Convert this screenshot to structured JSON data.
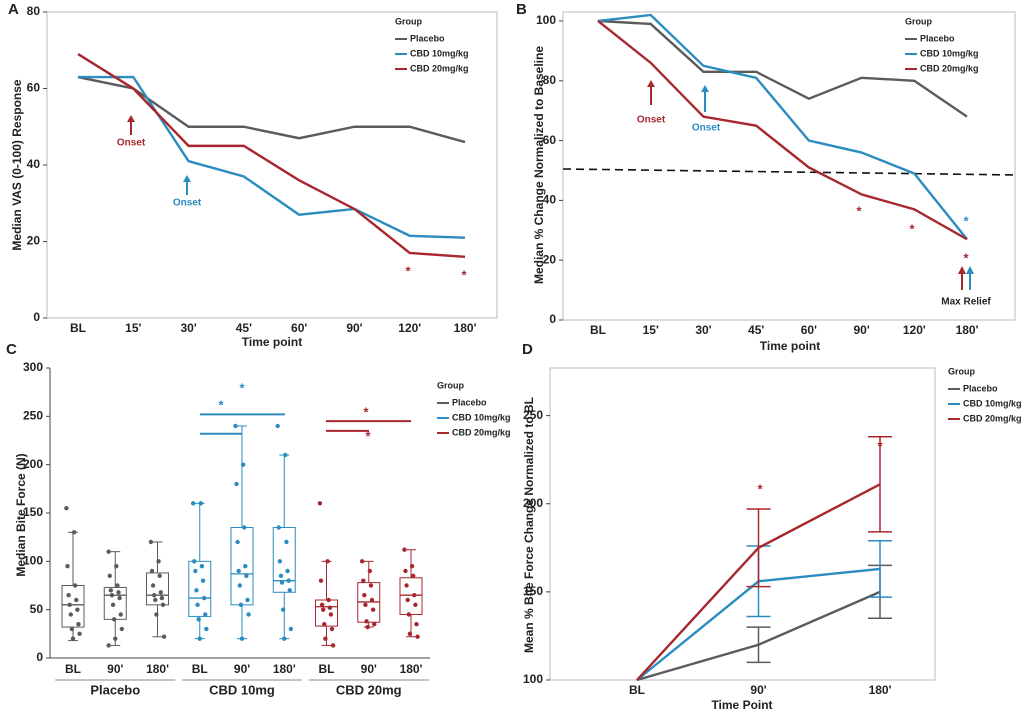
{
  "chart_data": [
    {
      "type": "line",
      "panel": "A",
      "ylabel": "Median VAS (0-100) Response",
      "xlabel": "Time point",
      "categories": [
        "BL",
        "15'",
        "30'",
        "45'",
        "60'",
        "90'",
        "120'",
        "180'"
      ],
      "ylim": [
        0,
        80
      ],
      "yticks": [
        0,
        20,
        40,
        60,
        80
      ],
      "frame": true,
      "legend_title": "Group",
      "series": [
        {
          "name": "Placebo",
          "color": "#5b5b5b",
          "values": [
            63,
            60,
            50,
            50,
            47,
            50,
            50,
            46
          ]
        },
        {
          "name": "CBD 10mg/kg",
          "color": "#2b8cc0",
          "values": [
            63,
            63,
            41,
            37,
            27,
            28.5,
            21.5,
            21
          ]
        },
        {
          "name": "CBD 20mg/kg",
          "color": "#a8272e",
          "values": [
            69,
            60,
            45,
            45,
            36,
            28.5,
            17,
            16
          ]
        }
      ],
      "annotations": [
        {
          "text": "Onset",
          "color": "#a8272e"
        },
        {
          "text": "Onset",
          "color": "#2b8cc0"
        },
        {
          "text": "*",
          "color": "#a8272e"
        },
        {
          "text": "*",
          "color": "#a8272e"
        }
      ]
    },
    {
      "type": "line",
      "panel": "B",
      "ylabel": "Median % Change Normalized to Baseline",
      "xlabel": "Time point",
      "categories": [
        "BL",
        "15'",
        "30'",
        "45'",
        "60'",
        "90'",
        "120'",
        "180'"
      ],
      "ylim": [
        0,
        103
      ],
      "yticks": [
        0,
        20,
        40,
        60,
        80,
        100
      ],
      "frame": true,
      "legend_title": "Group",
      "reference_line": {
        "values": [
          50.5,
          48.5
        ],
        "color": "#111111"
      },
      "series": [
        {
          "name": "Placebo",
          "color": "#5b5b5b",
          "values": [
            100,
            99,
            83,
            83,
            74,
            81,
            80,
            68
          ]
        },
        {
          "name": "CBD 10mg/kg",
          "color": "#2b8cc0",
          "values": [
            100,
            102,
            85,
            81,
            60,
            56,
            49,
            27
          ]
        },
        {
          "name": "CBD 20mg/kg",
          "color": "#a8272e",
          "values": [
            100,
            86,
            68,
            65,
            51,
            42,
            37,
            27
          ]
        }
      ],
      "annotations": [
        {
          "text": "Onset",
          "color": "#a8272e"
        },
        {
          "text": "Onset",
          "color": "#2b8cc0"
        },
        {
          "text": "*",
          "color": "#a8272e"
        },
        {
          "text": "*",
          "color": "#a8272e"
        },
        {
          "text": "*",
          "color": "#a8272e"
        },
        {
          "text": "*",
          "color": "#2b8cc0"
        },
        {
          "text": "Max Relief",
          "color": "#222222"
        }
      ]
    },
    {
      "type": "box",
      "panel": "C",
      "ylabel": "Median Bite Force (N)",
      "groups": [
        "Placebo",
        "CBD 10mg",
        "CBD 20mg"
      ],
      "categories": [
        "BL",
        "90'",
        "180'",
        "BL",
        "90'",
        "180'",
        "BL",
        "90'",
        "180'"
      ],
      "ylim": [
        0,
        300
      ],
      "yticks": [
        0,
        50,
        100,
        150,
        200,
        250,
        300
      ],
      "frame": false,
      "legend_title": "Group",
      "series": [
        {
          "name": "Placebo",
          "color": "#5b5b5b",
          "boxes": [
            {
              "min": 18,
              "q1": 32,
              "median": 55,
              "q3": 75,
              "max": 130,
              "points": [
                155,
                130,
                95,
                75,
                65,
                60,
                55,
                50,
                45,
                35,
                30,
                25,
                20
              ]
            },
            {
              "min": 13,
              "q1": 40,
              "median": 65,
              "q3": 73,
              "max": 110,
              "points": [
                110,
                95,
                85,
                75,
                70,
                68,
                65,
                62,
                55,
                45,
                40,
                30,
                20,
                13
              ]
            },
            {
              "min": 22,
              "q1": 55,
              "median": 65,
              "q3": 88,
              "max": 120,
              "points": [
                120,
                100,
                90,
                85,
                75,
                68,
                65,
                62,
                60,
                55,
                45,
                22
              ]
            }
          ]
        },
        {
          "name": "CBD 10mg/kg",
          "color": "#2b8cc0",
          "boxes": [
            {
              "min": 20,
              "q1": 43,
              "median": 62,
              "q3": 100,
              "max": 160,
              "points": [
                160,
                160,
                100,
                95,
                90,
                80,
                70,
                62,
                55,
                45,
                40,
                30,
                20
              ]
            },
            {
              "min": 20,
              "q1": 55,
              "median": 87,
              "q3": 135,
              "max": 240,
              "points": [
                240,
                200,
                180,
                135,
                120,
                95,
                90,
                85,
                75,
                60,
                55,
                45,
                20
              ]
            },
            {
              "min": 20,
              "q1": 68,
              "median": 80,
              "q3": 135,
              "max": 210,
              "points": [
                240,
                210,
                135,
                120,
                100,
                90,
                85,
                80,
                78,
                70,
                50,
                30,
                20
              ]
            }
          ]
        },
        {
          "name": "CBD 20mg/kg",
          "color": "#a8272e",
          "boxes": [
            {
              "min": 13,
              "q1": 33,
              "median": 53,
              "q3": 60,
              "max": 100,
              "points": [
                160,
                100,
                80,
                60,
                55,
                52,
                50,
                45,
                35,
                30,
                20,
                13
              ]
            },
            {
              "min": 32,
              "q1": 37,
              "median": 58,
              "q3": 78,
              "max": 100,
              "points": [
                100,
                90,
                80,
                75,
                65,
                60,
                55,
                50,
                38,
                35,
                32
              ]
            },
            {
              "min": 22,
              "q1": 45,
              "median": 65,
              "q3": 83,
              "max": 112,
              "points": [
                112,
                95,
                90,
                85,
                75,
                65,
                60,
                55,
                45,
                35,
                25,
                22
              ]
            }
          ]
        }
      ],
      "annotations": [
        {
          "text": "*",
          "color": "#2b8cc0"
        },
        {
          "text": "*",
          "color": "#2b8cc0"
        },
        {
          "text": "*",
          "color": "#a8272e"
        },
        {
          "text": "*",
          "color": "#a8272e"
        }
      ]
    },
    {
      "type": "line",
      "panel": "D",
      "ylabel": "Mean % Bite Force Change Normalized to BL",
      "xlabel": "Time Point",
      "categories": [
        "BL",
        "90'",
        "180'"
      ],
      "ylim": [
        100,
        277
      ],
      "yticks": [
        100,
        150,
        200,
        250
      ],
      "frame": true,
      "legend_title": "Group",
      "series": [
        {
          "name": "Placebo",
          "color": "#5b5b5b",
          "values": [
            100,
            120,
            150
          ],
          "errors": [
            null,
            10,
            15
          ]
        },
        {
          "name": "CBD 10mg/kg",
          "color": "#2b8cc0",
          "values": [
            100,
            156,
            163
          ],
          "errors": [
            null,
            20,
            16
          ]
        },
        {
          "name": "CBD 20mg/kg",
          "color": "#a8272e",
          "values": [
            100,
            175,
            211
          ],
          "errors": [
            null,
            22,
            27
          ]
        }
      ],
      "annotations": [
        {
          "text": "*",
          "color": "#a8272e"
        },
        {
          "text": "*",
          "color": "#a8272e"
        }
      ]
    }
  ]
}
